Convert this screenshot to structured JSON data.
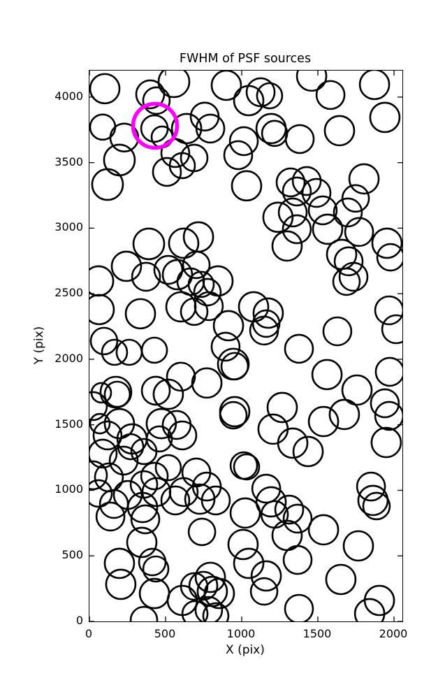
{
  "figure": {
    "background": "#ffffff"
  },
  "chart_data": {
    "type": "scatter",
    "title": "FWHM of PSF sources",
    "xlabel": "X (pix)",
    "ylabel": "Y (pix)",
    "xlim": [
      0,
      2055
    ],
    "ylim": [
      0,
      4202
    ],
    "x_ticks": [
      0,
      500,
      1000,
      1500,
      2000
    ],
    "y_ticks": [
      0,
      500,
      1000,
      1500,
      2000,
      2500,
      3000,
      3500,
      4000
    ],
    "grid": false,
    "legend": null,
    "marker_style": {
      "shape": "circle",
      "fill": "none",
      "stroke": "#000000",
      "stroke_width": 2.6,
      "note": "r is marker radius in screen px"
    },
    "highlight_style": {
      "shape": "circle",
      "fill": "none",
      "stroke": "#FF00FF",
      "stroke_width": 5.5
    },
    "points": [
      [
        101,
        4064,
        21
      ],
      [
        555,
        4117,
        22
      ],
      [
        399,
        4021,
        20
      ],
      [
        440,
        3973,
        19
      ],
      [
        87,
        3771,
        18
      ],
      [
        229,
        3691,
        20
      ],
      [
        197,
        3520,
        22
      ],
      [
        427,
        3760,
        19
      ],
      [
        477,
        3696,
        15
      ],
      [
        638,
        3760,
        21
      ],
      [
        564,
        3573,
        20
      ],
      [
        610,
        3477,
        18
      ],
      [
        509,
        3429,
        20
      ],
      [
        119,
        3333,
        22
      ],
      [
        757,
        3851,
        20
      ],
      [
        794,
        3760,
        20
      ],
      [
        688,
        3536,
        19
      ],
      [
        899,
        4090,
        21
      ],
      [
        1124,
        4037,
        20
      ],
      [
        1183,
        4010,
        18
      ],
      [
        1046,
        3973,
        21
      ],
      [
        1193,
        3760,
        21
      ],
      [
        1216,
        3723,
        18
      ],
      [
        1014,
        3664,
        20
      ],
      [
        977,
        3557,
        20
      ],
      [
        1032,
        3323,
        21
      ],
      [
        1459,
        4160,
        21
      ],
      [
        1583,
        4016,
        20
      ],
      [
        1872,
        4096,
        21
      ],
      [
        1940,
        3845,
        21
      ],
      [
        1642,
        3744,
        21
      ],
      [
        1381,
        3680,
        20
      ],
      [
        1803,
        3376,
        21
      ],
      [
        1427,
        3360,
        20
      ],
      [
        1491,
        3269,
        20
      ],
      [
        1362,
        3280,
        20
      ],
      [
        1748,
        3227,
        19
      ],
      [
        1697,
        3120,
        20
      ],
      [
        1532,
        3136,
        20
      ],
      [
        1321,
        3349,
        20
      ],
      [
        1564,
        2992,
        21
      ],
      [
        1771,
        2971,
        20
      ],
      [
        1335,
        3120,
        20
      ],
      [
        1362,
        2992,
        20
      ],
      [
        1298,
        2864,
        21
      ],
      [
        1238,
        3083,
        21
      ],
      [
        1954,
        2885,
        21
      ],
      [
        1977,
        2778,
        19
      ],
      [
        1656,
        2800,
        21
      ],
      [
        1702,
        2747,
        20
      ],
      [
        1734,
        2629,
        20
      ],
      [
        1688,
        2592,
        19
      ],
      [
        390,
        2880,
        22
      ],
      [
        243,
        2709,
        21
      ],
      [
        60,
        2597,
        21
      ],
      [
        372,
        2629,
        20
      ],
      [
        518,
        2682,
        20
      ],
      [
        619,
        2885,
        21
      ],
      [
        578,
        2645,
        21
      ],
      [
        665,
        2592,
        19
      ],
      [
        716,
        2933,
        21
      ],
      [
        702,
        2720,
        19
      ],
      [
        844,
        2597,
        21
      ],
      [
        734,
        2571,
        18
      ],
      [
        775,
        2512,
        19
      ],
      [
        784,
        2405,
        20
      ],
      [
        64,
        2379,
        21
      ],
      [
        335,
        2347,
        21
      ],
      [
        601,
        2400,
        21
      ],
      [
        688,
        2363,
        19
      ],
      [
        913,
        2256,
        21
      ],
      [
        1078,
        2400,
        21
      ],
      [
        1174,
        2352,
        21
      ],
      [
        1161,
        2272,
        19
      ],
      [
        1147,
        2219,
        20
      ],
      [
        1968,
        2373,
        20
      ],
      [
        2014,
        2229,
        20
      ],
      [
        1628,
        2213,
        20
      ],
      [
        894,
        2096,
        20
      ],
      [
        1376,
        2080,
        20
      ],
      [
        96,
        2139,
        19
      ],
      [
        165,
        2053,
        18
      ],
      [
        261,
        2053,
        18
      ],
      [
        427,
        2069,
        18
      ],
      [
        174,
        1749,
        22
      ],
      [
        183,
        1733,
        18
      ],
      [
        78,
        1744,
        14
      ],
      [
        23,
        1643,
        20
      ],
      [
        436,
        1760,
        20
      ],
      [
        518,
        1733,
        21
      ],
      [
        601,
        1867,
        20
      ],
      [
        197,
        1509,
        21
      ],
      [
        69,
        1509,
        14
      ],
      [
        119,
        1419,
        20
      ],
      [
        280,
        1392,
        21
      ],
      [
        271,
        1333,
        18
      ],
      [
        358,
        1296,
        18
      ],
      [
        87,
        1280,
        20
      ],
      [
        472,
        1509,
        21
      ],
      [
        573,
        1499,
        20
      ],
      [
        459,
        1392,
        18
      ],
      [
        610,
        1419,
        20
      ],
      [
        225,
        1227,
        20
      ],
      [
        23,
        1115,
        20
      ],
      [
        128,
        1099,
        20
      ],
      [
        427,
        1109,
        19
      ],
      [
        358,
        1045,
        19
      ],
      [
        518,
        1173,
        18
      ],
      [
        945,
        1963,
        22
      ],
      [
        954,
        1947,
        19
      ],
      [
        771,
        1819,
        21
      ],
      [
        954,
        1600,
        21
      ],
      [
        945,
        1573,
        19
      ],
      [
        1266,
        1632,
        21
      ],
      [
        1206,
        1467,
        21
      ],
      [
        1335,
        1360,
        21
      ],
      [
        1014,
        1189,
        19
      ],
      [
        1032,
        1179,
        18
      ],
      [
        702,
        1136,
        20
      ],
      [
        771,
        1029,
        20
      ],
      [
        1161,
        1013,
        20
      ],
      [
        1560,
        1883,
        21
      ],
      [
        1972,
        1904,
        20
      ],
      [
        1757,
        1765,
        21
      ],
      [
        1940,
        1664,
        20
      ],
      [
        1968,
        1568,
        20
      ],
      [
        1674,
        1579,
        21
      ],
      [
        1537,
        1525,
        21
      ],
      [
        1949,
        1365,
        21
      ],
      [
        1436,
        1296,
        21
      ],
      [
        1849,
        1029,
        20
      ],
      [
        60,
        976,
        19
      ],
      [
        161,
        896,
        20
      ],
      [
        138,
        800,
        20
      ],
      [
        252,
        965,
        20
      ],
      [
        349,
        869,
        21
      ],
      [
        367,
        779,
        20
      ],
      [
        440,
        987,
        20
      ],
      [
        564,
        923,
        20
      ],
      [
        619,
        987,
        20
      ],
      [
        344,
        603,
        21
      ],
      [
        197,
        443,
        21
      ],
      [
        413,
        453,
        19
      ],
      [
        436,
        400,
        18
      ],
      [
        206,
        283,
        21
      ],
      [
        427,
        213,
        21
      ],
      [
        610,
        160,
        21
      ],
      [
        358,
        10,
        19
      ],
      [
        725,
        933,
        21
      ],
      [
        830,
        923,
        20
      ],
      [
        739,
        683,
        19
      ],
      [
        1023,
        827,
        21
      ],
      [
        1193,
        912,
        21
      ],
      [
        1216,
        816,
        19
      ],
      [
        1312,
        853,
        20
      ],
      [
        1298,
        656,
        21
      ],
      [
        1009,
        587,
        21
      ],
      [
        1046,
        443,
        21
      ],
      [
        1161,
        347,
        21
      ],
      [
        1147,
        229,
        19
      ],
      [
        794,
        336,
        21
      ],
      [
        748,
        272,
        20
      ],
      [
        807,
        229,
        21
      ],
      [
        853,
        213,
        21
      ],
      [
        784,
        85,
        19
      ],
      [
        693,
        59,
        18
      ],
      [
        830,
        43,
        18
      ],
      [
        688,
        267,
        19
      ],
      [
        1862,
        923,
        21
      ],
      [
        1885,
        880,
        19
      ],
      [
        1367,
        784,
        20
      ],
      [
        1537,
        699,
        21
      ],
      [
        1766,
        576,
        21
      ],
      [
        1367,
        469,
        20
      ],
      [
        1651,
        320,
        21
      ],
      [
        1904,
        160,
        21
      ],
      [
        1840,
        59,
        21
      ],
      [
        1376,
        96,
        20
      ]
    ],
    "highlight": {
      "x": 431,
      "y": 3781,
      "r": 31.5
    }
  }
}
